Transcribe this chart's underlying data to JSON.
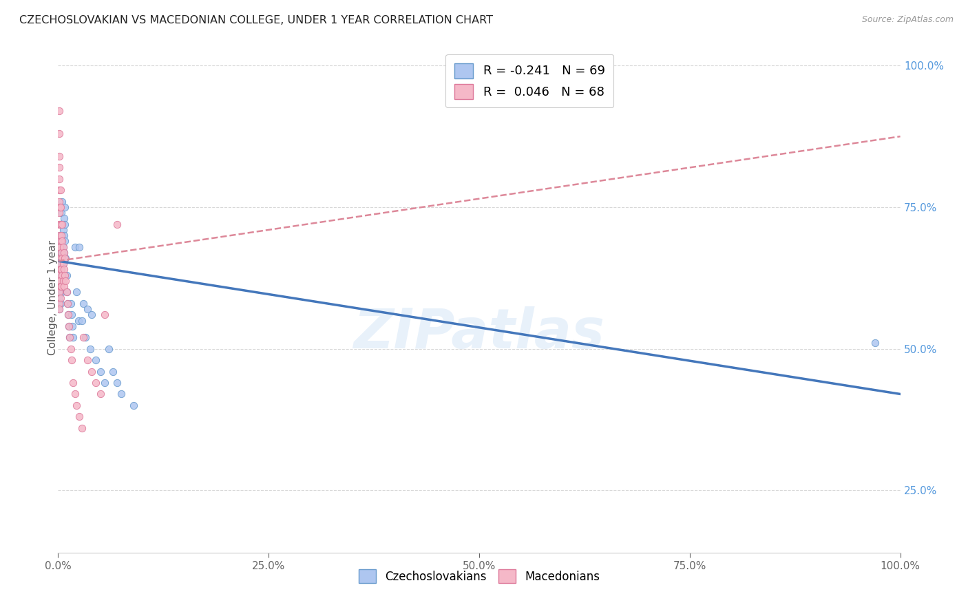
{
  "title": "CZECHOSLOVAKIAN VS MACEDONIAN COLLEGE, UNDER 1 YEAR CORRELATION CHART",
  "source": "Source: ZipAtlas.com",
  "ylabel": "College, Under 1 year",
  "watermark": "ZIPatlas",
  "legend_entries": [
    {
      "label": "R = -0.241   N = 69",
      "facecolor": "#aec6f0",
      "edgecolor": "#7baad4"
    },
    {
      "label": "R =  0.046   N = 68",
      "facecolor": "#f5b8c8",
      "edgecolor": "#e07a9a"
    }
  ],
  "blue_scatter_x": [
    0.001,
    0.001,
    0.001,
    0.001,
    0.001,
    0.001,
    0.001,
    0.001,
    0.001,
    0.002,
    0.002,
    0.002,
    0.002,
    0.003,
    0.003,
    0.003,
    0.003,
    0.003,
    0.003,
    0.003,
    0.004,
    0.004,
    0.004,
    0.004,
    0.005,
    0.005,
    0.005,
    0.005,
    0.005,
    0.005,
    0.006,
    0.006,
    0.006,
    0.007,
    0.007,
    0.007,
    0.008,
    0.008,
    0.008,
    0.009,
    0.01,
    0.01,
    0.011,
    0.012,
    0.013,
    0.014,
    0.015,
    0.016,
    0.017,
    0.018,
    0.02,
    0.022,
    0.024,
    0.025,
    0.028,
    0.03,
    0.032,
    0.035,
    0.038,
    0.04,
    0.045,
    0.05,
    0.055,
    0.06,
    0.065,
    0.07,
    0.075,
    0.09,
    0.97
  ],
  "blue_scatter_y": [
    0.68,
    0.65,
    0.63,
    0.62,
    0.61,
    0.6,
    0.59,
    0.58,
    0.57,
    0.7,
    0.67,
    0.64,
    0.62,
    0.72,
    0.69,
    0.66,
    0.64,
    0.62,
    0.6,
    0.58,
    0.74,
    0.7,
    0.67,
    0.64,
    0.76,
    0.72,
    0.68,
    0.65,
    0.62,
    0.6,
    0.71,
    0.68,
    0.65,
    0.73,
    0.7,
    0.67,
    0.75,
    0.72,
    0.69,
    0.66,
    0.63,
    0.6,
    0.58,
    0.56,
    0.54,
    0.52,
    0.58,
    0.56,
    0.54,
    0.52,
    0.68,
    0.6,
    0.55,
    0.68,
    0.55,
    0.58,
    0.52,
    0.57,
    0.5,
    0.56,
    0.48,
    0.46,
    0.44,
    0.5,
    0.46,
    0.44,
    0.42,
    0.4,
    0.51
  ],
  "pink_scatter_x": [
    0.001,
    0.001,
    0.001,
    0.001,
    0.001,
    0.001,
    0.001,
    0.001,
    0.001,
    0.001,
    0.001,
    0.001,
    0.001,
    0.001,
    0.001,
    0.001,
    0.001,
    0.001,
    0.001,
    0.002,
    0.002,
    0.002,
    0.002,
    0.002,
    0.003,
    0.003,
    0.003,
    0.003,
    0.003,
    0.003,
    0.003,
    0.003,
    0.004,
    0.004,
    0.004,
    0.004,
    0.005,
    0.005,
    0.005,
    0.005,
    0.006,
    0.006,
    0.006,
    0.007,
    0.007,
    0.007,
    0.008,
    0.008,
    0.009,
    0.01,
    0.011,
    0.012,
    0.013,
    0.014,
    0.015,
    0.016,
    0.018,
    0.02,
    0.022,
    0.025,
    0.028,
    0.03,
    0.035,
    0.04,
    0.045,
    0.05,
    0.055,
    0.07
  ],
  "pink_scatter_y": [
    0.92,
    0.88,
    0.84,
    0.82,
    0.8,
    0.78,
    0.76,
    0.74,
    0.72,
    0.7,
    0.68,
    0.66,
    0.64,
    0.63,
    0.62,
    0.61,
    0.6,
    0.58,
    0.57,
    0.75,
    0.72,
    0.68,
    0.65,
    0.62,
    0.78,
    0.75,
    0.72,
    0.69,
    0.66,
    0.64,
    0.61,
    0.59,
    0.7,
    0.67,
    0.64,
    0.61,
    0.72,
    0.69,
    0.66,
    0.63,
    0.68,
    0.65,
    0.62,
    0.67,
    0.64,
    0.61,
    0.66,
    0.63,
    0.62,
    0.6,
    0.58,
    0.56,
    0.54,
    0.52,
    0.5,
    0.48,
    0.44,
    0.42,
    0.4,
    0.38,
    0.36,
    0.52,
    0.48,
    0.46,
    0.44,
    0.42,
    0.56,
    0.72
  ],
  "blue_line_x": [
    0.0,
    1.0
  ],
  "blue_line_y": [
    0.655,
    0.42
  ],
  "pink_line_x": [
    0.0,
    1.0
  ],
  "pink_line_y": [
    0.655,
    0.875
  ],
  "xlim": [
    0.0,
    1.0
  ],
  "ylim": [
    0.14,
    1.04
  ],
  "xticks": [
    0.0,
    0.25,
    0.5,
    0.75,
    1.0
  ],
  "yticks_right": [
    0.25,
    0.5,
    0.75,
    1.0
  ],
  "grid_color": "#d8d8d8",
  "scatter_size": 55,
  "blue_face": "#aec6f0",
  "blue_edge": "#6699cc",
  "pink_face": "#f5b8c8",
  "pink_edge": "#dd7799",
  "bg_color": "#ffffff",
  "blue_line_color": "#4477bb",
  "pink_line_color": "#dd8899"
}
